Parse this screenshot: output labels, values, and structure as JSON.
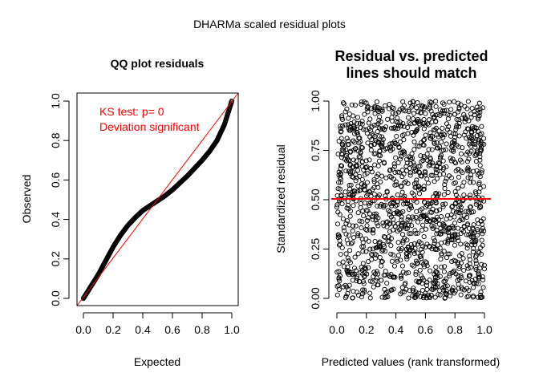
{
  "figure": {
    "suptitle": "DHARMa scaled residual plots"
  },
  "chart_data": [
    {
      "type": "scatter",
      "title": "QQ plot residuals",
      "xlabel": "Expected",
      "ylabel": "Observed",
      "xlim": [
        0,
        1
      ],
      "ylim": [
        0,
        1
      ],
      "xticks": [
        "0.0",
        "0.2",
        "0.4",
        "0.6",
        "0.8",
        "1.0"
      ],
      "yticks": [
        "0.0",
        "0.2",
        "0.4",
        "0.6",
        "0.8",
        "1.0"
      ],
      "annotations": [
        "KS test: p= 0",
        "Deviation  significant"
      ],
      "reference_line": {
        "slope": 1,
        "intercept": 0,
        "color": "#ff0000"
      },
      "quantile_points": {
        "x": [
          0.0,
          0.05,
          0.1,
          0.15,
          0.2,
          0.25,
          0.3,
          0.35,
          0.4,
          0.45,
          0.5,
          0.55,
          0.6,
          0.65,
          0.7,
          0.75,
          0.8,
          0.85,
          0.9,
          0.95,
          1.0
        ],
        "y": [
          0.0,
          0.06,
          0.12,
          0.19,
          0.26,
          0.32,
          0.37,
          0.41,
          0.445,
          0.47,
          0.495,
          0.52,
          0.55,
          0.585,
          0.62,
          0.66,
          0.7,
          0.745,
          0.8,
          0.88,
          1.0
        ]
      },
      "point_color": "#000000"
    },
    {
      "type": "scatter",
      "title": "Residual vs. predicted\nlines should match",
      "title_lines": [
        "Residual vs. predicted",
        "lines should match"
      ],
      "xlabel": "Predicted values (rank transformed)",
      "ylabel": "Standardized residual",
      "xlim": [
        0,
        1
      ],
      "ylim": [
        0,
        1
      ],
      "xticks": [
        "0.0",
        "0.2",
        "0.4",
        "0.6",
        "0.8",
        "1.0"
      ],
      "yticks": [
        "0.00",
        "0.25",
        "0.50",
        "0.75",
        "1.00"
      ],
      "point_count": 1500,
      "distribution": "uniform",
      "horizontal_line": {
        "y": 0.5,
        "color": "#ff0000"
      },
      "quantile_lines_y": [
        0.25,
        0.5,
        0.75
      ],
      "point_color": "#000000"
    }
  ]
}
